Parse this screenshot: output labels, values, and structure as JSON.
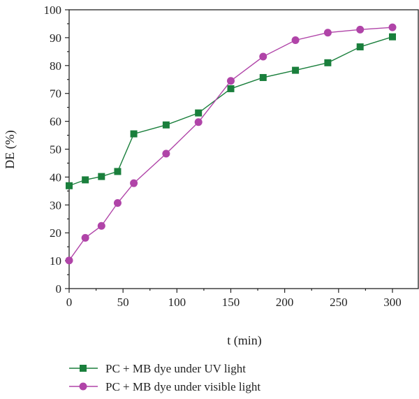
{
  "chart_data": {
    "type": "line",
    "xlabel": "t (min)",
    "ylabel": "DE (%)",
    "xlim": [
      0,
      300
    ],
    "ylim": [
      0,
      100
    ],
    "xticks": [
      0,
      50,
      100,
      150,
      200,
      250,
      300
    ],
    "yticks": [
      0,
      10,
      20,
      30,
      40,
      50,
      60,
      70,
      80,
      90,
      100
    ],
    "grid": false,
    "legend_position": "bottom",
    "x": [
      0,
      15,
      30,
      45,
      60,
      90,
      120,
      150,
      180,
      210,
      240,
      270,
      300
    ],
    "series": [
      {
        "name": "PC + MB dye under UV light",
        "marker": "square",
        "color": "#1a7f3c",
        "values": [
          36.9,
          39.0,
          40.2,
          42.0,
          55.5,
          58.7,
          63.0,
          71.7,
          75.7,
          78.3,
          81.0,
          86.7,
          90.3
        ]
      },
      {
        "name": "PC + MB dye under visible light",
        "marker": "circle",
        "color": "#b044a8",
        "values": [
          10.1,
          18.2,
          22.5,
          30.7,
          37.8,
          48.4,
          59.7,
          74.5,
          83.2,
          89.1,
          91.8,
          92.9,
          93.7
        ]
      }
    ]
  }
}
